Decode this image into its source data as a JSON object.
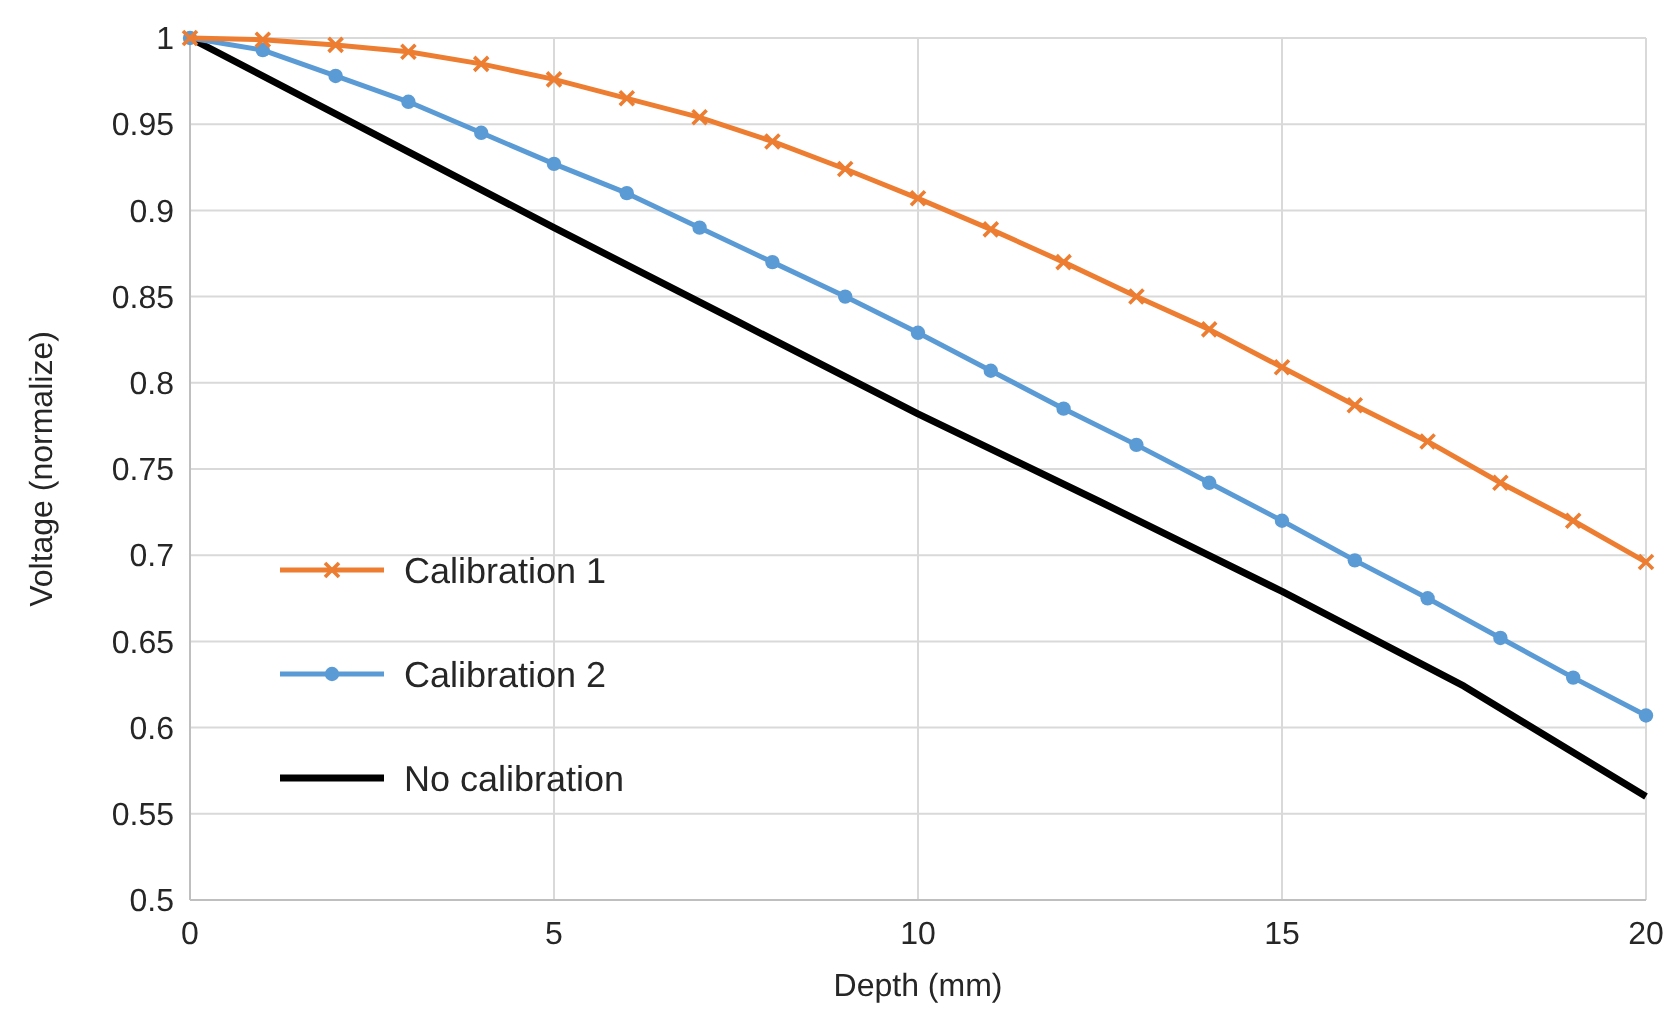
{
  "chart_data": {
    "type": "line",
    "xlabel": "Depth (mm)",
    "ylabel": "Voltage (normalize)",
    "x": [
      0,
      1,
      2,
      3,
      4,
      5,
      6,
      7,
      8,
      9,
      10,
      11,
      12,
      13,
      14,
      15,
      16,
      17,
      18,
      19,
      20
    ],
    "xlim": [
      0,
      20
    ],
    "xticks": [
      0,
      5,
      10,
      15,
      20
    ],
    "ylim": [
      0.5,
      1
    ],
    "yticks": [
      0.5,
      0.55,
      0.6,
      0.65,
      0.7,
      0.75,
      0.8,
      0.85,
      0.9,
      0.95,
      1
    ],
    "grid": true,
    "legend": "left",
    "line_style": "solid",
    "series": [
      {
        "name": "Calibration 1",
        "color": "#ed7d31",
        "marker": "cross",
        "values": [
          1,
          0.999,
          0.996,
          0.992,
          0.985,
          0.976,
          0.965,
          0.954,
          0.94,
          0.924,
          0.907,
          0.889,
          0.87,
          0.85,
          0.831,
          0.809,
          0.787,
          0.766,
          0.742,
          0.72,
          0.696
        ]
      },
      {
        "name": "Calibration 2",
        "color": "#5b9bd5",
        "marker": "circle",
        "values": [
          1,
          0.993,
          0.978,
          0.963,
          0.945,
          0.927,
          0.91,
          0.89,
          0.87,
          0.85,
          0.829,
          0.807,
          0.785,
          0.764,
          0.742,
          0.72,
          0.697,
          0.675,
          0.652,
          0.629,
          0.607
        ]
      },
      {
        "name": "No calibration",
        "color": "#000000",
        "marker": "none",
        "x": [
          0,
          2.5,
          5,
          7.5,
          10,
          12.5,
          15,
          17.5,
          20
        ],
        "values": [
          1,
          0.945,
          0.89,
          0.836,
          0.782,
          0.731,
          0.679,
          0.624,
          0.56
        ]
      }
    ]
  }
}
